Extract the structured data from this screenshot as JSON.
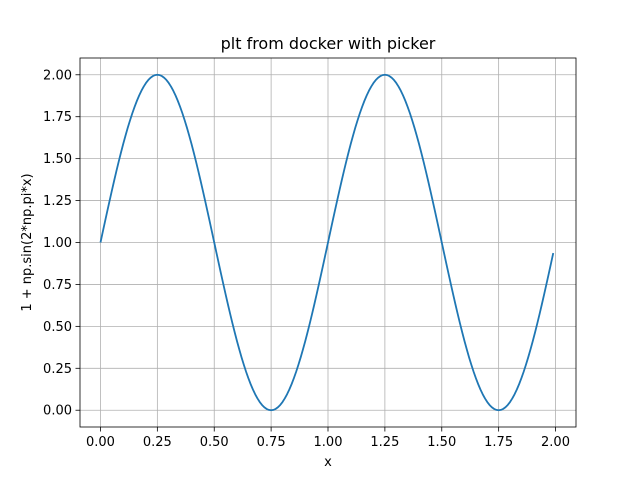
{
  "chart_data": {
    "type": "line",
    "title": "plt from docker with picker",
    "xlabel": "x",
    "ylabel": "1 + np.sin(2*np.pi*x)",
    "xlim": [
      -0.09,
      2.09
    ],
    "ylim": [
      -0.1,
      2.1
    ],
    "xticks": [
      "0.00",
      "0.25",
      "0.50",
      "0.75",
      "1.00",
      "1.25",
      "1.50",
      "1.75",
      "2.00"
    ],
    "xtick_values": [
      0,
      0.25,
      0.5,
      0.75,
      1.0,
      1.25,
      1.5,
      1.75,
      2.0
    ],
    "yticks": [
      "0.00",
      "0.25",
      "0.50",
      "0.75",
      "1.00",
      "1.25",
      "1.50",
      "1.75",
      "2.00"
    ],
    "ytick_values": [
      0,
      0.25,
      0.5,
      0.75,
      1.0,
      1.25,
      1.5,
      1.75,
      2.0
    ],
    "grid": true,
    "series": [
      {
        "color": "#1f77b4",
        "x_start": 0.0,
        "x_end": 1.99,
        "x_step": 0.01,
        "x": [
          0.0,
          0.05,
          0.1,
          0.15,
          0.2,
          0.25,
          0.3,
          0.35,
          0.4,
          0.45,
          0.5,
          0.55,
          0.6,
          0.65,
          0.7,
          0.75,
          0.8,
          0.85,
          0.9,
          0.95,
          1.0,
          1.05,
          1.1,
          1.15,
          1.2,
          1.25,
          1.3,
          1.35,
          1.4,
          1.45,
          1.5,
          1.55,
          1.6,
          1.65,
          1.7,
          1.75,
          1.8,
          1.85,
          1.9,
          1.95,
          1.99
        ],
        "y": [
          1.0,
          1.309,
          1.588,
          1.809,
          1.951,
          2.0,
          1.951,
          1.809,
          1.588,
          1.309,
          1.0,
          0.691,
          0.412,
          0.191,
          0.049,
          0.0,
          0.049,
          0.191,
          0.412,
          0.691,
          1.0,
          1.309,
          1.588,
          1.809,
          1.951,
          2.0,
          1.951,
          1.809,
          1.588,
          1.309,
          1.0,
          0.691,
          0.412,
          0.191,
          0.049,
          0.0,
          0.049,
          0.191,
          0.412,
          0.691,
          0.937
        ]
      }
    ]
  }
}
